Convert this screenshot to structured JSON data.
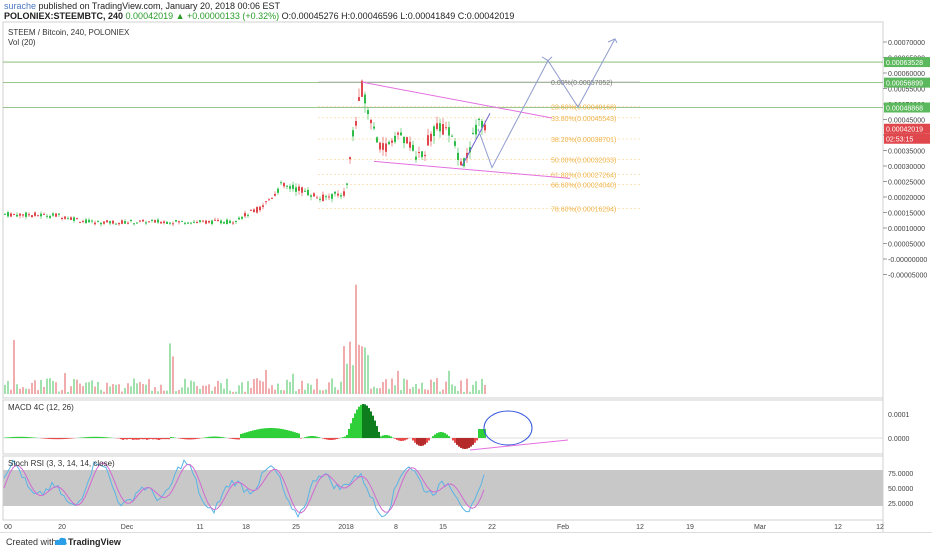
{
  "header": {
    "user": "surache",
    "published": "published on TradingView.com, January 20, 2018 00:06 EST",
    "symbol_line": "POLONIEX:STEEMBTC, 240",
    "last": "0.00042019",
    "change": "▲ +0.00000133 (+0.32%)",
    "ohlc": "O:0.00045276 H:0.00046596 L:0.00041849 C:0.00042019"
  },
  "legend": {
    "pair": "STEEM / Bitcoin, 240, POLONIEX",
    "vol": "Vol (20)",
    "macd": "MACD 4C (12, 26)",
    "stoch": "Stoch RSI (3, 3, 14, 14, close)"
  },
  "colors": {
    "up": "#2fbd4a",
    "down": "#e0474c",
    "fib": "#f0b44a",
    "trend": "#e46fe0",
    "projection": "#8f9ccf",
    "level": "#7bb36a",
    "stoch_k": "#5ab4e6",
    "stoch_d": "#d06ad0"
  },
  "chart_data": {
    "type": "candlestick",
    "y_axis_labels": [
      "0.00070000",
      "0.00065000",
      "0.00060000",
      "0.00055000",
      "0.00050000",
      "0.00045000",
      "0.00040000",
      "0.00035000",
      "0.00030000",
      "0.00025000",
      "0.00020000",
      "0.00015000",
      "0.00010000",
      "0.00005000",
      "-0.00000000",
      "-0.00005000"
    ],
    "price_tags": [
      {
        "value": 0.00063528,
        "label": "0.00063528",
        "color": "#5cb85c"
      },
      {
        "value": 0.00056899,
        "label": "0.00056899",
        "color": "#5cb85c"
      },
      {
        "value": 0.00048868,
        "label": "0.00048868",
        "color": "#5cb85c"
      },
      {
        "value": 0.00042019,
        "label": "0.00042019",
        "color": "#e0474c"
      },
      {
        "value": 0.0004,
        "label": "02:53:15",
        "color": "#e0474c"
      }
    ],
    "fib_levels": [
      {
        "value": 0.00057052,
        "label": "0.00%(0.00057052)"
      },
      {
        "value": 0.00049168,
        "label": "23.60%(0.00049168)"
      },
      {
        "value": 0.00045543,
        "label": "33.80%(0.00045543)"
      },
      {
        "value": 0.00038701,
        "label": "38.20%(0.00038701)"
      },
      {
        "value": 0.00032033,
        "label": "50.00%(0.00032033)"
      },
      {
        "value": 0.00027264,
        "label": "61.80%(0.00027264)"
      },
      {
        "value": 0.0002404,
        "label": "66.60%(0.00024040)"
      },
      {
        "value": 0.00016294,
        "label": "78.60%(0.00016294)"
      }
    ],
    "horizontal_levels": [
      0.00063528,
      0.00056899,
      0.00048868
    ],
    "x_axis_labels": [
      "00",
      "20",
      "Dec",
      "11",
      "18",
      "25",
      "2018",
      "8",
      "15",
      "22",
      "Feb",
      "12",
      "19",
      "Mar",
      "12",
      "12"
    ],
    "macd_axis_labels": [
      "0.0001",
      "0.0000"
    ],
    "stoch_axis_labels": [
      "75.0000",
      "50.0000",
      "25.0000"
    ],
    "stoch_band": [
      20,
      80
    ]
  },
  "footer": {
    "created": "Created with",
    "brand": "TradingView"
  }
}
